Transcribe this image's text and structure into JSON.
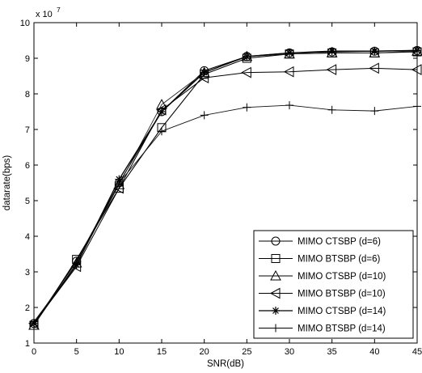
{
  "chart_data": {
    "type": "line",
    "title": "",
    "xlabel": "SNR(dB)",
    "ylabel": "datarate(bps)",
    "y_multiplier_label": "x 10",
    "y_multiplier_exponent": "7",
    "x": [
      0,
      5,
      10,
      15,
      20,
      25,
      30,
      35,
      40,
      45
    ],
    "xlim": [
      0,
      45
    ],
    "ylim": [
      1,
      10
    ],
    "x_ticks": [
      "0",
      "5",
      "10",
      "15",
      "20",
      "25",
      "30",
      "35",
      "40",
      "45"
    ],
    "y_ticks": [
      "1",
      "2",
      "3",
      "4",
      "5",
      "6",
      "7",
      "8",
      "9",
      "10"
    ],
    "grid": false,
    "legend_position": "bottom-right",
    "series": [
      {
        "name": "MIMO CTSBP (d=6)",
        "marker": "circle",
        "values": [
          1.55,
          3.3,
          5.5,
          7.5,
          8.65,
          9.05,
          9.15,
          9.18,
          9.2,
          9.22
        ]
      },
      {
        "name": "MIMO BTSBP (d=6)",
        "marker": "square",
        "values": [
          1.5,
          3.35,
          5.35,
          7.05,
          8.55,
          9.0,
          9.12,
          9.15,
          9.15,
          9.18
        ]
      },
      {
        "name": "MIMO CTSBP (d=10)",
        "marker": "triangle",
        "values": [
          1.5,
          3.25,
          5.45,
          7.7,
          8.6,
          9.05,
          9.12,
          9.15,
          9.15,
          9.2
        ]
      },
      {
        "name": "MIMO BTSBP (d=10)",
        "marker": "triangle-left",
        "values": [
          1.55,
          3.15,
          5.35,
          7.55,
          8.45,
          8.6,
          8.62,
          8.68,
          8.72,
          8.68
        ]
      },
      {
        "name": "MIMO CTSBP (d=14)",
        "marker": "star",
        "values": [
          1.55,
          3.2,
          5.6,
          7.5,
          8.6,
          9.05,
          9.15,
          9.2,
          9.2,
          9.22
        ]
      },
      {
        "name": "MIMO BTSBP (d=14)",
        "marker": "plus",
        "values": [
          1.6,
          3.2,
          5.5,
          6.95,
          7.4,
          7.62,
          7.68,
          7.55,
          7.52,
          7.65
        ]
      }
    ]
  }
}
